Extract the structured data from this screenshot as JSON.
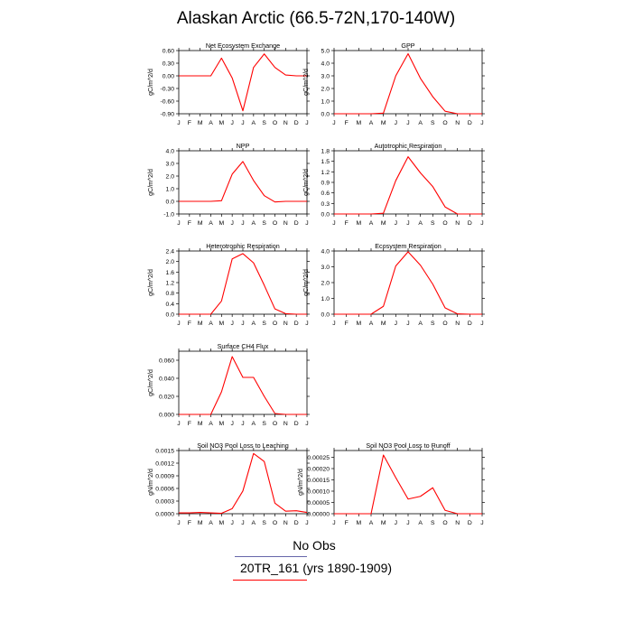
{
  "title": "Alaskan Arctic (66.5-72N,170-140W)",
  "legend": {
    "obs_label": "No Obs",
    "model_label": "20TR_161 (yrs 1890-1909)",
    "obs_color": "#6666aa",
    "model_color": "#ff0000"
  },
  "month_labels": [
    "J",
    "F",
    "M",
    "A",
    "M",
    "J",
    "J",
    "A",
    "S",
    "O",
    "N",
    "D",
    "J"
  ],
  "line_color": "#ff0000",
  "chart_data": [
    {
      "type": "line",
      "title": "Net Ecosystem Exchange",
      "ylabel": "gC/m^2/d",
      "ylim": [
        -0.9,
        0.6
      ],
      "yticks": [
        "-0.90",
        "-0.60",
        "-0.30",
        "0.00",
        "0.30",
        "0.60"
      ],
      "ytick_values": [
        -0.9,
        -0.6,
        -0.3,
        0.0,
        0.3,
        0.6
      ],
      "values": [
        0.0,
        0.0,
        0.0,
        0.0,
        0.42,
        -0.05,
        -0.83,
        0.2,
        0.52,
        0.2,
        0.02,
        0.0,
        0.0
      ]
    },
    {
      "type": "line",
      "title": "GPP",
      "ylabel": "gC/m^2/d",
      "ylim": [
        0,
        5
      ],
      "yticks": [
        "0.0",
        "1.0",
        "2.0",
        "3.0",
        "4.0",
        "5.0"
      ],
      "ytick_values": [
        0,
        1,
        2,
        3,
        4,
        5
      ],
      "values": [
        0.0,
        0.0,
        0.0,
        0.0,
        0.05,
        3.0,
        4.75,
        2.8,
        1.35,
        0.2,
        0.0,
        0.0,
        0.0
      ]
    },
    {
      "type": "line",
      "title": "NPP",
      "ylabel": "gC/m^2/d",
      "ylim": [
        -1,
        4
      ],
      "yticks": [
        "-1.0",
        "0.0",
        "1.0",
        "2.0",
        "3.0",
        "4.0"
      ],
      "ytick_values": [
        -1,
        0,
        1,
        2,
        3,
        4
      ],
      "values": [
        0.0,
        0.0,
        0.0,
        0.0,
        0.05,
        2.15,
        3.15,
        1.65,
        0.45,
        -0.05,
        0.0,
        0.0,
        0.0
      ]
    },
    {
      "type": "line",
      "title": "Autotrophic Respiration",
      "ylabel": "gC/m^2/d",
      "ylim": [
        0,
        1.8
      ],
      "yticks": [
        "0.0",
        "0.3",
        "0.6",
        "0.9",
        "1.2",
        "1.5",
        "1.8"
      ],
      "ytick_values": [
        0,
        0.3,
        0.6,
        0.9,
        1.2,
        1.5,
        1.8
      ],
      "values": [
        0.0,
        0.0,
        0.0,
        0.0,
        0.02,
        0.95,
        1.63,
        1.17,
        0.78,
        0.2,
        0.0,
        0.0,
        0.0
      ]
    },
    {
      "type": "line",
      "title": "Heterotrophic Respiration",
      "ylabel": "gC/m^2/d",
      "ylim": [
        0,
        2.4
      ],
      "yticks": [
        "0.0",
        "0.4",
        "0.8",
        "1.2",
        "1.6",
        "2.0",
        "2.4"
      ],
      "ytick_values": [
        0,
        0.4,
        0.8,
        1.2,
        1.6,
        2.0,
        2.4
      ],
      "values": [
        0.0,
        0.0,
        0.0,
        0.0,
        0.5,
        2.1,
        2.3,
        1.95,
        1.1,
        0.2,
        0.02,
        0.0,
        0.0
      ]
    },
    {
      "type": "line",
      "title": "Ecosystem Respiration",
      "ylabel": "gC/m^2/d",
      "ylim": [
        0,
        4
      ],
      "yticks": [
        "0.0",
        "1.0",
        "2.0",
        "3.0",
        "4.0"
      ],
      "ytick_values": [
        0,
        1,
        2,
        3,
        4
      ],
      "values": [
        0.0,
        0.0,
        0.0,
        0.0,
        0.5,
        3.05,
        3.95,
        3.1,
        1.9,
        0.4,
        0.02,
        0.0,
        0.0
      ]
    },
    {
      "type": "line",
      "title": "Surface CH4 Flux",
      "ylabel": "gC/m^2/d",
      "ylim": [
        0,
        0.07
      ],
      "yticks": [
        "0.000",
        "0.020",
        "0.040",
        "0.060"
      ],
      "ytick_values": [
        0,
        0.02,
        0.04,
        0.06
      ],
      "values": [
        0.0,
        0.0,
        0.0,
        0.0,
        0.025,
        0.064,
        0.041,
        0.041,
        0.02,
        0.001,
        0.0,
        0.0,
        0.0
      ]
    },
    {
      "type": "line",
      "title": "Soil NO3 Pool Loss to Leaching",
      "ylabel": "gN/m^2/d",
      "ylim": [
        0,
        0.0015
      ],
      "yticks": [
        "0.0000",
        "0.0003",
        "0.0006",
        "0.0009",
        "0.0012",
        "0.0015"
      ],
      "ytick_values": [
        0,
        0.0003,
        0.0006,
        0.0009,
        0.0012,
        0.0015
      ],
      "values": [
        2e-05,
        2e-05,
        3e-05,
        2e-05,
        1e-05,
        0.00012,
        0.00054,
        0.00143,
        0.00124,
        0.00025,
        6e-05,
        7e-05,
        3e-05
      ]
    },
    {
      "type": "line",
      "title": "Soil NO3 Pool Loss to Runoff",
      "ylabel": "gN/m^2/d",
      "ylim": [
        0,
        0.00028
      ],
      "yticks": [
        "0.00000",
        "0.00005",
        "0.00010",
        "0.00015",
        "0.00020",
        "0.00025"
      ],
      "ytick_values": [
        0,
        5e-05,
        0.0001,
        0.00015,
        0.0002,
        0.00025
      ],
      "values": [
        0.0,
        0.0,
        0.0,
        0.0,
        0.00026,
        0.00016,
        6.5e-05,
        7.7e-05,
        0.000115,
        1.5e-05,
        0.0,
        0.0,
        0.0
      ]
    }
  ]
}
